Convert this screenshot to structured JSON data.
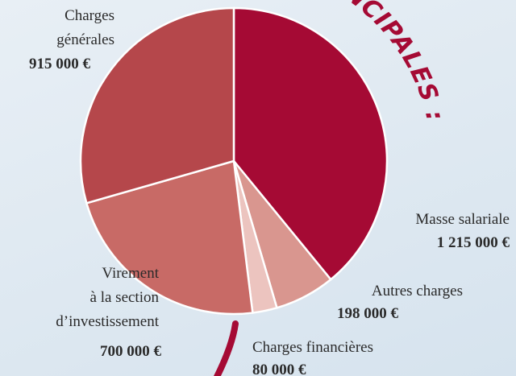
{
  "chart_data": {
    "type": "pie",
    "title": "RINCIPALES :",
    "categories": [
      "Masse salariale",
      "Autres charges",
      "Charges financières",
      "Virement\nà la section\nd’investissement",
      "Charges\ngénérales"
    ],
    "values": [
      1215000,
      198000,
      80000,
      700000,
      915000
    ],
    "value_labels": [
      "1 215 000 €",
      "198 000 €",
      "80 000 €",
      "700 000 €",
      "915 000 €"
    ],
    "colors": [
      "#a50a34",
      "#d9968f",
      "#ecc4bf",
      "#c86a66",
      "#b5474b"
    ]
  }
}
